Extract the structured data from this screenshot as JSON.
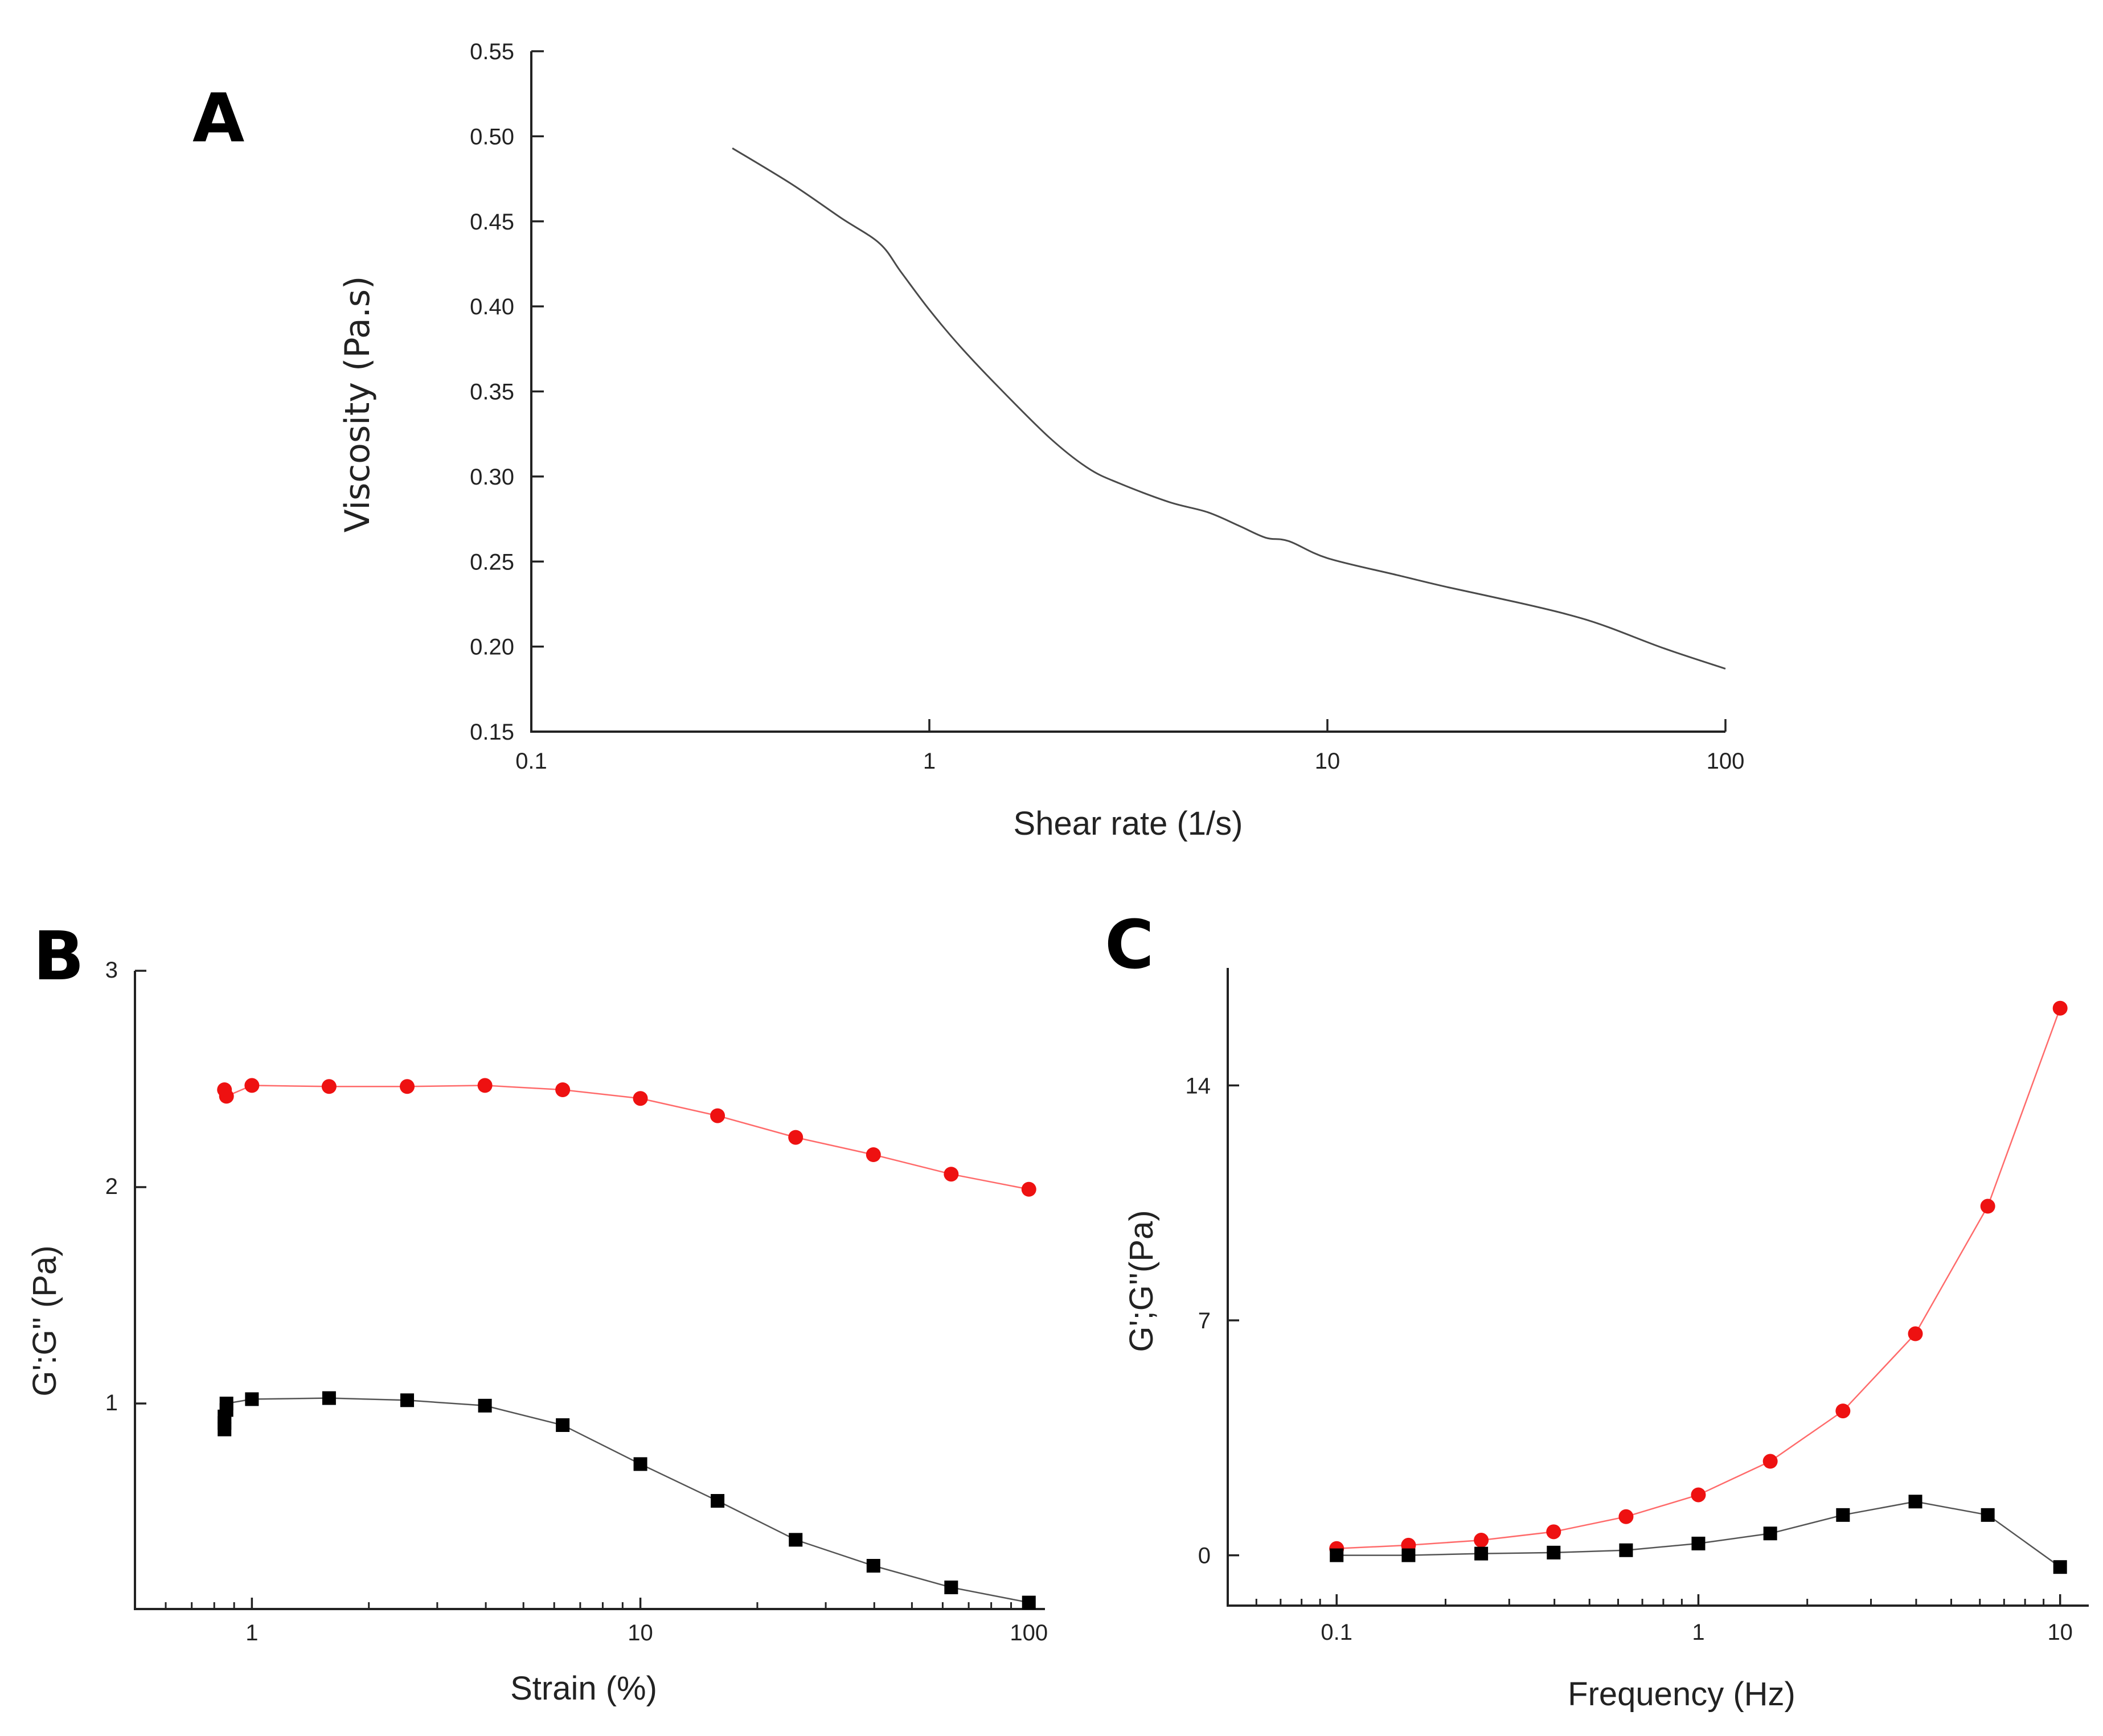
{
  "chart_data": [
    {
      "id": "A",
      "type": "line",
      "panel_label": "A",
      "xlabel": "Shear rate (1/s)",
      "ylabel": "Viscosity (Pa.s)",
      "xscale": "log",
      "xlim": [
        0.1,
        100
      ],
      "ylim": [
        0.15,
        0.55
      ],
      "xticks": [
        0.1,
        1,
        10,
        100
      ],
      "xtick_labels": [
        "0.1",
        "1",
        "10",
        "100"
      ],
      "yticks": [
        0.15,
        0.2,
        0.25,
        0.3,
        0.35,
        0.4,
        0.45,
        0.5,
        0.55
      ],
      "ytick_labels": [
        "0.15",
        "0.20",
        "0.25",
        "0.30",
        "0.35",
        "0.40",
        "0.45",
        "0.50",
        "0.55"
      ],
      "series": [
        {
          "name": "Viscosity",
          "color": "#4a4a4a",
          "x": [
            0.32,
            0.45,
            0.6,
            0.75,
            0.85,
            1.0,
            1.2,
            1.5,
            2.0,
            2.5,
            3.0,
            4.0,
            5.0,
            6.0,
            7.0,
            8.0,
            10,
            15,
            20,
            30,
            40,
            50,
            70,
            100
          ],
          "y": [
            0.493,
            0.472,
            0.452,
            0.437,
            0.42,
            0.398,
            0.376,
            0.352,
            0.323,
            0.305,
            0.296,
            0.285,
            0.279,
            0.271,
            0.264,
            0.262,
            0.252,
            0.242,
            0.235,
            0.226,
            0.219,
            0.212,
            0.199,
            0.187
          ]
        }
      ]
    },
    {
      "id": "B",
      "type": "line",
      "panel_label": "B",
      "xlabel": "Strain (%)",
      "ylabel": "G':G'' (Pa)",
      "xscale": "log",
      "xlim": [
        0.5,
        110
      ],
      "ylim": [
        0.05,
        3.0
      ],
      "xticks": [
        1,
        10,
        100
      ],
      "xtick_labels": [
        "1",
        "10",
        "100"
      ],
      "yticks": [
        1,
        2,
        3
      ],
      "ytick_labels": [
        "1",
        "2",
        "3"
      ],
      "series": [
        {
          "name": "G'",
          "color": "#ee1111",
          "marker": "circle",
          "x": [
            0.85,
            0.86,
            1.0,
            1.58,
            2.51,
            3.98,
            6.31,
            10,
            15.8,
            25.1,
            39.8,
            63.1,
            100
          ],
          "y": [
            2.45,
            2.42,
            2.47,
            2.465,
            2.465,
            2.47,
            2.45,
            2.41,
            2.33,
            2.23,
            2.15,
            2.06,
            1.99
          ]
        },
        {
          "name": "G''",
          "color": "#000000",
          "marker": "square",
          "x": [
            0.85,
            0.85,
            0.85,
            0.86,
            0.86,
            1.0,
            1.58,
            2.51,
            3.98,
            6.31,
            10,
            15.8,
            25.1,
            39.8,
            63.1,
            100
          ],
          "y": [
            0.88,
            0.91,
            0.94,
            0.97,
            1.0,
            1.02,
            1.025,
            1.015,
            0.99,
            0.9,
            0.72,
            0.55,
            0.37,
            0.25,
            0.15,
            0.08
          ]
        }
      ]
    },
    {
      "id": "C",
      "type": "line",
      "panel_label": "C",
      "xlabel": "Frequency (Hz)",
      "ylabel": "G';G''(Pa)",
      "xscale": "log",
      "xlim": [
        0.05,
        12
      ],
      "ylim": [
        -1.5,
        17.5
      ],
      "xticks": [
        0.1,
        1,
        10
      ],
      "xtick_labels": [
        "0.1",
        "1",
        "10"
      ],
      "yticks": [
        0,
        7,
        14
      ],
      "ytick_labels": [
        "0",
        "7",
        "14"
      ],
      "series": [
        {
          "name": "G'",
          "color": "#ee1111",
          "marker": "circle",
          "x": [
            0.1,
            0.158,
            0.251,
            0.398,
            0.631,
            1.0,
            1.58,
            2.51,
            3.98,
            6.31,
            10
          ],
          "y": [
            0.2,
            0.3,
            0.45,
            0.7,
            1.15,
            1.8,
            2.8,
            4.3,
            6.6,
            10.4,
            16.3
          ]
        },
        {
          "name": "G''",
          "color": "#000000",
          "marker": "square",
          "x": [
            0.1,
            0.158,
            0.251,
            0.398,
            0.631,
            1.0,
            1.58,
            2.51,
            3.98,
            6.31,
            10
          ],
          "y": [
            0.0,
            0.0,
            0.05,
            0.08,
            0.15,
            0.35,
            0.65,
            1.2,
            1.6,
            1.2,
            -0.35
          ]
        }
      ]
    }
  ]
}
